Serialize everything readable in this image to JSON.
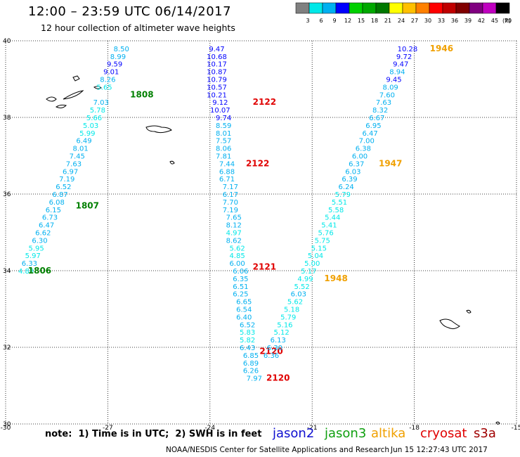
{
  "header": {
    "title": "12:00 – 23:59 UTC 06/14/2017",
    "subtitle": "12 hour collection of altimeter wave heights"
  },
  "footer": {
    "note": "note:  1) Time is in UTC;  2) SWH is in feet",
    "credit": "NOAA/NESDIS Center for Satellite Applications and Research",
    "timestamp": "Jun 15 12:27:43 UTC 2017"
  },
  "satellites": [
    {
      "name": "jason2",
      "color": "#1010d0"
    },
    {
      "name": "jason3",
      "color": "#10a010"
    },
    {
      "name": "altika",
      "color": "#f0a000"
    },
    {
      "name": "cryosat",
      "color": "#e00000"
    },
    {
      "name": "s3a",
      "color": "#a00000"
    }
  ],
  "colorbar": {
    "unit": "(ft)",
    "labels": [
      "3",
      "6",
      "9",
      "12",
      "15",
      "18",
      "21",
      "24",
      "27",
      "30",
      "33",
      "36",
      "39",
      "42",
      "45",
      "70"
    ],
    "colors": [
      "#808080",
      "#00e8e8",
      "#00b0f0",
      "#0000ff",
      "#00d000",
      "#00a800",
      "#007800",
      "#ffff00",
      "#ffc000",
      "#ff8000",
      "#ff0000",
      "#c00000",
      "#800000",
      "#800080",
      "#c000c0",
      "#000000"
    ]
  },
  "chart_data": {
    "type": "scatter",
    "title": "12:00 – 23:59 UTC 06/14/2017",
    "subtitle": "12 hour collection of altimeter wave heights",
    "xlim": [
      -30,
      -15
    ],
    "ylim": [
      30,
      40
    ],
    "xticks": [
      "-30",
      "-27",
      "-24",
      "-21",
      "-18",
      "-15"
    ],
    "yticks": [
      "30",
      "32",
      "34",
      "36",
      "38",
      "40"
    ],
    "x_tick_values": [
      -30,
      -27,
      -24,
      -21,
      -18,
      -15
    ],
    "y_tick_values": [
      30,
      32,
      34,
      36,
      38,
      40
    ],
    "grid": true,
    "tracks": [
      {
        "id": "track-a",
        "points": [
          {
            "lon": -26.6,
            "lat": 39.8,
            "v": "8.50",
            "c": "#00b0f0"
          },
          {
            "lon": -26.7,
            "lat": 39.6,
            "v": "8.99",
            "c": "#00b0f0"
          },
          {
            "lon": -26.8,
            "lat": 39.4,
            "v": "9.59",
            "c": "#0000ff"
          },
          {
            "lon": -26.9,
            "lat": 39.2,
            "v": "9.01",
            "c": "#0000ff"
          },
          {
            "lon": -27.0,
            "lat": 39.0,
            "v": "8.26",
            "c": "#00b0f0"
          },
          {
            "lon": -27.1,
            "lat": 38.8,
            "v": "5.65",
            "c": "#00e8e8"
          },
          {
            "lon": -27.2,
            "lat": 38.4,
            "v": "7.03",
            "c": "#00b0f0"
          },
          {
            "lon": -27.3,
            "lat": 38.2,
            "v": "5.78",
            "c": "#00e8e8"
          },
          {
            "lon": -27.4,
            "lat": 38.0,
            "v": "5.66",
            "c": "#00e8e8"
          },
          {
            "lon": -27.5,
            "lat": 37.8,
            "v": "5.03",
            "c": "#00e8e8"
          },
          {
            "lon": -27.6,
            "lat": 37.6,
            "v": "5.99",
            "c": "#00e8e8"
          },
          {
            "lon": -27.7,
            "lat": 37.4,
            "v": "6.49",
            "c": "#00b0f0"
          },
          {
            "lon": -27.8,
            "lat": 37.2,
            "v": "8.01",
            "c": "#00b0f0"
          },
          {
            "lon": -27.9,
            "lat": 37.0,
            "v": "7.45",
            "c": "#00b0f0"
          },
          {
            "lon": -28.0,
            "lat": 36.8,
            "v": "7.63",
            "c": "#00b0f0"
          },
          {
            "lon": -28.1,
            "lat": 36.6,
            "v": "6.97",
            "c": "#00b0f0"
          },
          {
            "lon": -28.2,
            "lat": 36.4,
            "v": "7.19",
            "c": "#00b0f0"
          },
          {
            "lon": -28.3,
            "lat": 36.2,
            "v": "6.52",
            "c": "#00b0f0"
          },
          {
            "lon": -28.4,
            "lat": 36.0,
            "v": "6.87",
            "c": "#00b0f0"
          },
          {
            "lon": -28.5,
            "lat": 35.8,
            "v": "6.08",
            "c": "#00b0f0"
          },
          {
            "lon": -28.6,
            "lat": 35.6,
            "v": "6.15",
            "c": "#00b0f0"
          },
          {
            "lon": -28.7,
            "lat": 35.4,
            "v": "6.73",
            "c": "#00b0f0"
          },
          {
            "lon": -28.8,
            "lat": 35.2,
            "v": "6.47",
            "c": "#00b0f0"
          },
          {
            "lon": -28.9,
            "lat": 35.0,
            "v": "6.62",
            "c": "#00b0f0"
          },
          {
            "lon": -29.0,
            "lat": 34.8,
            "v": "6.30",
            "c": "#00b0f0"
          },
          {
            "lon": -29.1,
            "lat": 34.6,
            "v": "5.95",
            "c": "#00e8e8"
          },
          {
            "lon": -29.2,
            "lat": 34.4,
            "v": "5.97",
            "c": "#00e8e8"
          },
          {
            "lon": -29.3,
            "lat": 34.2,
            "v": "6.33",
            "c": "#00b0f0"
          },
          {
            "lon": -29.4,
            "lat": 34.0,
            "v": "4.88",
            "c": "#00e8e8"
          }
        ],
        "passes": [
          {
            "label": "1808",
            "lon": -26.0,
            "lat": 38.6,
            "c": "#008000"
          },
          {
            "label": "1807",
            "lon": -27.6,
            "lat": 35.7,
            "c": "#008000"
          },
          {
            "label": "1806",
            "lon": -29.0,
            "lat": 34.0,
            "c": "#008000"
          }
        ]
      },
      {
        "id": "track-b",
        "points": [
          {
            "lon": -23.8,
            "lat": 39.8,
            "v": "9.47",
            "c": "#0000ff"
          },
          {
            "lon": -23.8,
            "lat": 39.6,
            "v": "10.68",
            "c": "#0000ff"
          },
          {
            "lon": -23.8,
            "lat": 39.4,
            "v": "10.17",
            "c": "#0000ff"
          },
          {
            "lon": -23.8,
            "lat": 39.2,
            "v": "10.87",
            "c": "#0000ff"
          },
          {
            "lon": -23.8,
            "lat": 39.0,
            "v": "10.79",
            "c": "#0000ff"
          },
          {
            "lon": -23.8,
            "lat": 38.8,
            "v": "10.57",
            "c": "#0000ff"
          },
          {
            "lon": -23.8,
            "lat": 38.6,
            "v": "10.21",
            "c": "#0000ff"
          },
          {
            "lon": -23.7,
            "lat": 38.4,
            "v": "9.12",
            "c": "#0000ff"
          },
          {
            "lon": -23.7,
            "lat": 38.2,
            "v": "10.07",
            "c": "#0000ff"
          },
          {
            "lon": -23.6,
            "lat": 38.0,
            "v": "9.74",
            "c": "#0000ff"
          },
          {
            "lon": -23.6,
            "lat": 37.8,
            "v": "8.59",
            "c": "#00b0f0"
          },
          {
            "lon": -23.6,
            "lat": 37.6,
            "v": "8.01",
            "c": "#00b0f0"
          },
          {
            "lon": -23.6,
            "lat": 37.4,
            "v": "7.57",
            "c": "#00b0f0"
          },
          {
            "lon": -23.6,
            "lat": 37.2,
            "v": "8.06",
            "c": "#00b0f0"
          },
          {
            "lon": -23.6,
            "lat": 37.0,
            "v": "7.81",
            "c": "#00b0f0"
          },
          {
            "lon": -23.5,
            "lat": 36.8,
            "v": "7.44",
            "c": "#00b0f0"
          },
          {
            "lon": -23.5,
            "lat": 36.6,
            "v": "6.88",
            "c": "#00b0f0"
          },
          {
            "lon": -23.5,
            "lat": 36.4,
            "v": "6.71",
            "c": "#00b0f0"
          },
          {
            "lon": -23.4,
            "lat": 36.2,
            "v": "7.17",
            "c": "#00b0f0"
          },
          {
            "lon": -23.4,
            "lat": 36.0,
            "v": "6.17",
            "c": "#00b0f0"
          },
          {
            "lon": -23.4,
            "lat": 35.8,
            "v": "7.70",
            "c": "#00b0f0"
          },
          {
            "lon": -23.4,
            "lat": 35.6,
            "v": "7.19",
            "c": "#00b0f0"
          },
          {
            "lon": -23.3,
            "lat": 35.4,
            "v": "7.65",
            "c": "#00b0f0"
          },
          {
            "lon": -23.3,
            "lat": 35.2,
            "v": "8.12",
            "c": "#00b0f0"
          },
          {
            "lon": -23.3,
            "lat": 35.0,
            "v": "4.97",
            "c": "#00e8e8"
          },
          {
            "lon": -23.3,
            "lat": 34.8,
            "v": "8.62",
            "c": "#00b0f0"
          },
          {
            "lon": -23.2,
            "lat": 34.6,
            "v": "5.62",
            "c": "#00e8e8"
          },
          {
            "lon": -23.2,
            "lat": 34.4,
            "v": "4.85",
            "c": "#00e8e8"
          },
          {
            "lon": -23.2,
            "lat": 34.2,
            "v": "6.00",
            "c": "#00b0f0"
          },
          {
            "lon": -23.1,
            "lat": 34.0,
            "v": "6.06",
            "c": "#00b0f0"
          },
          {
            "lon": -23.1,
            "lat": 33.8,
            "v": "6.35",
            "c": "#00b0f0"
          },
          {
            "lon": -23.1,
            "lat": 33.6,
            "v": "6.51",
            "c": "#00b0f0"
          },
          {
            "lon": -23.1,
            "lat": 33.4,
            "v": "6.25",
            "c": "#00b0f0"
          },
          {
            "lon": -23.0,
            "lat": 33.2,
            "v": "6.65",
            "c": "#00b0f0"
          },
          {
            "lon": -23.0,
            "lat": 33.0,
            "v": "6.54",
            "c": "#00b0f0"
          },
          {
            "lon": -23.0,
            "lat": 32.8,
            "v": "6.40",
            "c": "#00b0f0"
          },
          {
            "lon": -22.9,
            "lat": 32.6,
            "v": "6.52",
            "c": "#00b0f0"
          },
          {
            "lon": -22.9,
            "lat": 32.4,
            "v": "5.83",
            "c": "#00e8e8"
          },
          {
            "lon": -22.9,
            "lat": 32.2,
            "v": "5.82",
            "c": "#00e8e8"
          },
          {
            "lon": -22.9,
            "lat": 32.0,
            "v": "6.43",
            "c": "#00b0f0"
          },
          {
            "lon": -22.8,
            "lat": 31.8,
            "v": "6.85",
            "c": "#00b0f0"
          },
          {
            "lon": -22.8,
            "lat": 31.6,
            "v": "6.89",
            "c": "#00b0f0"
          },
          {
            "lon": -22.8,
            "lat": 31.4,
            "v": "6.26",
            "c": "#00b0f0"
          },
          {
            "lon": -22.7,
            "lat": 31.2,
            "v": "7.97",
            "c": "#00b0f0"
          }
        ],
        "passes": [
          {
            "label": "2122",
            "lon": -22.4,
            "lat": 38.4,
            "c": "#e00000"
          },
          {
            "label": "2122",
            "lon": -22.6,
            "lat": 36.8,
            "c": "#e00000"
          },
          {
            "label": "2121",
            "lon": -22.4,
            "lat": 34.1,
            "c": "#e00000"
          },
          {
            "label": "2120",
            "lon": -22.2,
            "lat": 31.9,
            "c": "#e00000"
          },
          {
            "label": "2120",
            "lon": -22.0,
            "lat": 31.2,
            "c": "#e00000"
          }
        ]
      },
      {
        "id": "track-c",
        "points": [
          {
            "lon": -18.2,
            "lat": 39.8,
            "v": "10.28",
            "c": "#0000ff"
          },
          {
            "lon": -18.3,
            "lat": 39.6,
            "v": "9.72",
            "c": "#0000ff"
          },
          {
            "lon": -18.4,
            "lat": 39.4,
            "v": "9.47",
            "c": "#0000ff"
          },
          {
            "lon": -18.5,
            "lat": 39.2,
            "v": "8.94",
            "c": "#00b0f0"
          },
          {
            "lon": -18.6,
            "lat": 39.0,
            "v": "9.45",
            "c": "#0000ff"
          },
          {
            "lon": -18.7,
            "lat": 38.8,
            "v": "8.09",
            "c": "#00b0f0"
          },
          {
            "lon": -18.8,
            "lat": 38.6,
            "v": "7.60",
            "c": "#00b0f0"
          },
          {
            "lon": -18.9,
            "lat": 38.4,
            "v": "7.63",
            "c": "#00b0f0"
          },
          {
            "lon": -19.0,
            "lat": 38.2,
            "v": "8.32",
            "c": "#00b0f0"
          },
          {
            "lon": -19.1,
            "lat": 38.0,
            "v": "6.67",
            "c": "#00b0f0"
          },
          {
            "lon": -19.2,
            "lat": 37.8,
            "v": "6.95",
            "c": "#00b0f0"
          },
          {
            "lon": -19.3,
            "lat": 37.6,
            "v": "6.47",
            "c": "#00b0f0"
          },
          {
            "lon": -19.4,
            "lat": 37.4,
            "v": "7.00",
            "c": "#00b0f0"
          },
          {
            "lon": -19.5,
            "lat": 37.2,
            "v": "6.38",
            "c": "#00b0f0"
          },
          {
            "lon": -19.6,
            "lat": 37.0,
            "v": "6.00",
            "c": "#00b0f0"
          },
          {
            "lon": -19.7,
            "lat": 36.8,
            "v": "6.37",
            "c": "#00b0f0"
          },
          {
            "lon": -19.8,
            "lat": 36.6,
            "v": "6.03",
            "c": "#00b0f0"
          },
          {
            "lon": -19.9,
            "lat": 36.4,
            "v": "6.39",
            "c": "#00b0f0"
          },
          {
            "lon": -20.0,
            "lat": 36.2,
            "v": "6.24",
            "c": "#00b0f0"
          },
          {
            "lon": -20.1,
            "lat": 36.0,
            "v": "5.79",
            "c": "#00e8e8"
          },
          {
            "lon": -20.2,
            "lat": 35.8,
            "v": "5.51",
            "c": "#00e8e8"
          },
          {
            "lon": -20.3,
            "lat": 35.6,
            "v": "5.58",
            "c": "#00e8e8"
          },
          {
            "lon": -20.4,
            "lat": 35.4,
            "v": "5.44",
            "c": "#00e8e8"
          },
          {
            "lon": -20.5,
            "lat": 35.2,
            "v": "5.41",
            "c": "#00e8e8"
          },
          {
            "lon": -20.6,
            "lat": 35.0,
            "v": "5.76",
            "c": "#00e8e8"
          },
          {
            "lon": -20.7,
            "lat": 34.8,
            "v": "5.75",
            "c": "#00e8e8"
          },
          {
            "lon": -20.8,
            "lat": 34.6,
            "v": "5.15",
            "c": "#00e8e8"
          },
          {
            "lon": -20.9,
            "lat": 34.4,
            "v": "5.04",
            "c": "#00e8e8"
          },
          {
            "lon": -21.0,
            "lat": 34.2,
            "v": "5.00",
            "c": "#00e8e8"
          },
          {
            "lon": -21.1,
            "lat": 34.0,
            "v": "5.17",
            "c": "#00e8e8"
          },
          {
            "lon": -21.2,
            "lat": 33.8,
            "v": "4.99",
            "c": "#00e8e8"
          },
          {
            "lon": -21.3,
            "lat": 33.6,
            "v": "5.52",
            "c": "#00e8e8"
          },
          {
            "lon": -21.4,
            "lat": 33.4,
            "v": "6.03",
            "c": "#00b0f0"
          },
          {
            "lon": -21.5,
            "lat": 33.2,
            "v": "5.62",
            "c": "#00e8e8"
          },
          {
            "lon": -21.6,
            "lat": 33.0,
            "v": "5.18",
            "c": "#00e8e8"
          },
          {
            "lon": -21.7,
            "lat": 32.8,
            "v": "5.79",
            "c": "#00e8e8"
          },
          {
            "lon": -21.8,
            "lat": 32.6,
            "v": "5.16",
            "c": "#00e8e8"
          },
          {
            "lon": -21.9,
            "lat": 32.4,
            "v": "5.12",
            "c": "#00e8e8"
          },
          {
            "lon": -22.0,
            "lat": 32.2,
            "v": "6.13",
            "c": "#00b0f0"
          },
          {
            "lon": -22.1,
            "lat": 32.0,
            "v": "6.30",
            "c": "#00b0f0"
          },
          {
            "lon": -22.2,
            "lat": 31.8,
            "v": "6.36",
            "c": "#00b0f0"
          }
        ],
        "passes": [
          {
            "label": "1946",
            "lon": -17.2,
            "lat": 39.8,
            "c": "#f0a000"
          },
          {
            "label": "1947",
            "lon": -18.7,
            "lat": 36.8,
            "c": "#f0a000"
          },
          {
            "label": "1948",
            "lon": -20.3,
            "lat": 33.8,
            "c": "#f0a000"
          }
        ]
      }
    ]
  }
}
